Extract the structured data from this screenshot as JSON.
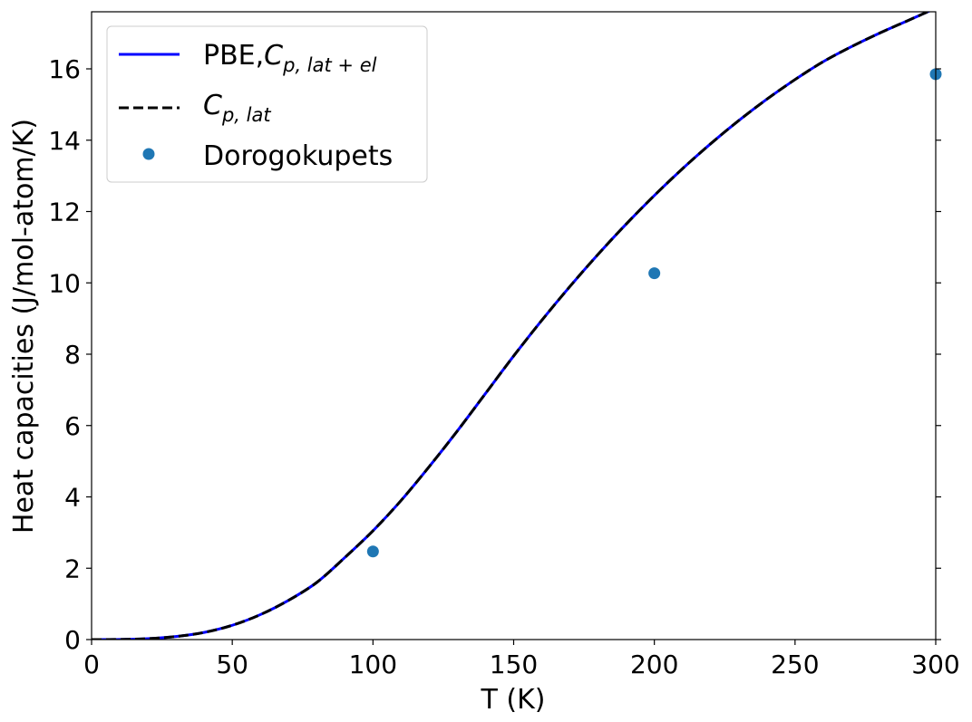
{
  "chart_data": {
    "type": "line",
    "xlabel": "T (K)",
    "ylabel": "Heat capacities (J/mol-atom/K)",
    "xlim": [
      0,
      300
    ],
    "ylim": [
      0,
      17.6
    ],
    "xticks": [
      "0",
      "50",
      "100",
      "150",
      "200",
      "250",
      "300"
    ],
    "yticks": [
      "0",
      "2",
      "4",
      "6",
      "8",
      "10",
      "12",
      "14",
      "16"
    ],
    "grid": false,
    "legend_position": "upper-left",
    "legend": [
      {
        "id": "pbe",
        "main": "PBE,",
        "italic": "C",
        "sub": "p, lat + el"
      },
      {
        "id": "lat",
        "main": "",
        "italic": "C",
        "sub": "p, lat"
      },
      {
        "id": "dor",
        "main": "Dorogokupets",
        "italic": "",
        "sub": ""
      }
    ],
    "series": [
      {
        "id": "pbe",
        "style": "solid",
        "color": "#0000ff",
        "x": [
          0,
          10,
          20,
          30,
          40,
          50,
          60,
          70,
          80,
          90,
          100,
          110,
          120,
          130,
          140,
          150,
          160,
          170,
          180,
          190,
          200,
          210,
          220,
          230,
          240,
          250,
          260,
          270,
          280,
          290,
          300
        ],
        "y": [
          0,
          0.003,
          0.025,
          0.085,
          0.2,
          0.4,
          0.7,
          1.1,
          1.6,
          2.3,
          3.05,
          3.9,
          4.85,
          5.85,
          6.9,
          7.95,
          8.95,
          9.9,
          10.8,
          11.65,
          12.45,
          13.2,
          13.9,
          14.55,
          15.15,
          15.7,
          16.2,
          16.62,
          17.0,
          17.35,
          17.7
        ]
      },
      {
        "id": "lat",
        "style": "dashed",
        "color": "#000000",
        "x": [
          0,
          10,
          20,
          30,
          40,
          50,
          60,
          70,
          80,
          90,
          100,
          110,
          120,
          130,
          140,
          150,
          160,
          170,
          180,
          190,
          200,
          210,
          220,
          230,
          240,
          250,
          260,
          270,
          280,
          290,
          300
        ],
        "y": [
          0,
          0.003,
          0.025,
          0.085,
          0.2,
          0.4,
          0.7,
          1.1,
          1.6,
          2.3,
          3.05,
          3.9,
          4.85,
          5.85,
          6.9,
          7.95,
          8.95,
          9.9,
          10.8,
          11.65,
          12.45,
          13.2,
          13.9,
          14.55,
          15.15,
          15.7,
          16.2,
          16.62,
          17.0,
          17.35,
          17.7
        ]
      },
      {
        "id": "dor",
        "style": "marker",
        "color": "#1f77b4",
        "x": [
          100,
          200,
          300
        ],
        "y": [
          2.47,
          10.27,
          15.85
        ]
      }
    ]
  }
}
